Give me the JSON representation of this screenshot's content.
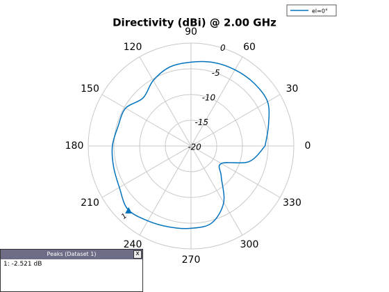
{
  "chart_data": {
    "type": "polar",
    "title": "Directivity (dBi) @ 2.00 GHz",
    "series": [
      {
        "name": "el=0°",
        "color": "#0072bd",
        "theta": [
          0,
          15,
          30,
          45,
          60,
          75,
          90,
          105,
          120,
          135,
          150,
          165,
          180,
          195,
          210,
          225,
          240,
          255,
          270,
          285,
          300,
          315,
          330,
          345,
          360
        ],
        "values": [
          -5.6,
          -4.4,
          -2.8,
          -2.7,
          -2.9,
          -3.2,
          -3.7,
          -4.1,
          -5.3,
          -6.8,
          -5.3,
          -5.3,
          -4.7,
          -4.4,
          -3.9,
          -2.6,
          -3.2,
          -3.7,
          -4.0,
          -4.5,
          -7.3,
          -11.7,
          -13.2,
          -8.3,
          -5.6
        ]
      }
    ],
    "rlim": [
      -20,
      0
    ],
    "rticks": [
      -20,
      -15,
      -10,
      -5,
      0
    ],
    "thetaticks": [
      0,
      30,
      60,
      90,
      120,
      150,
      180,
      210,
      240,
      270,
      300,
      330
    ],
    "grid": true,
    "peak": {
      "label": "1",
      "theta": 226,
      "value": -2.521
    }
  },
  "peaks_panel": {
    "title": "Peaks (Dataset 1)",
    "close": "x",
    "rows": [
      "1: -2.521 dB"
    ]
  }
}
